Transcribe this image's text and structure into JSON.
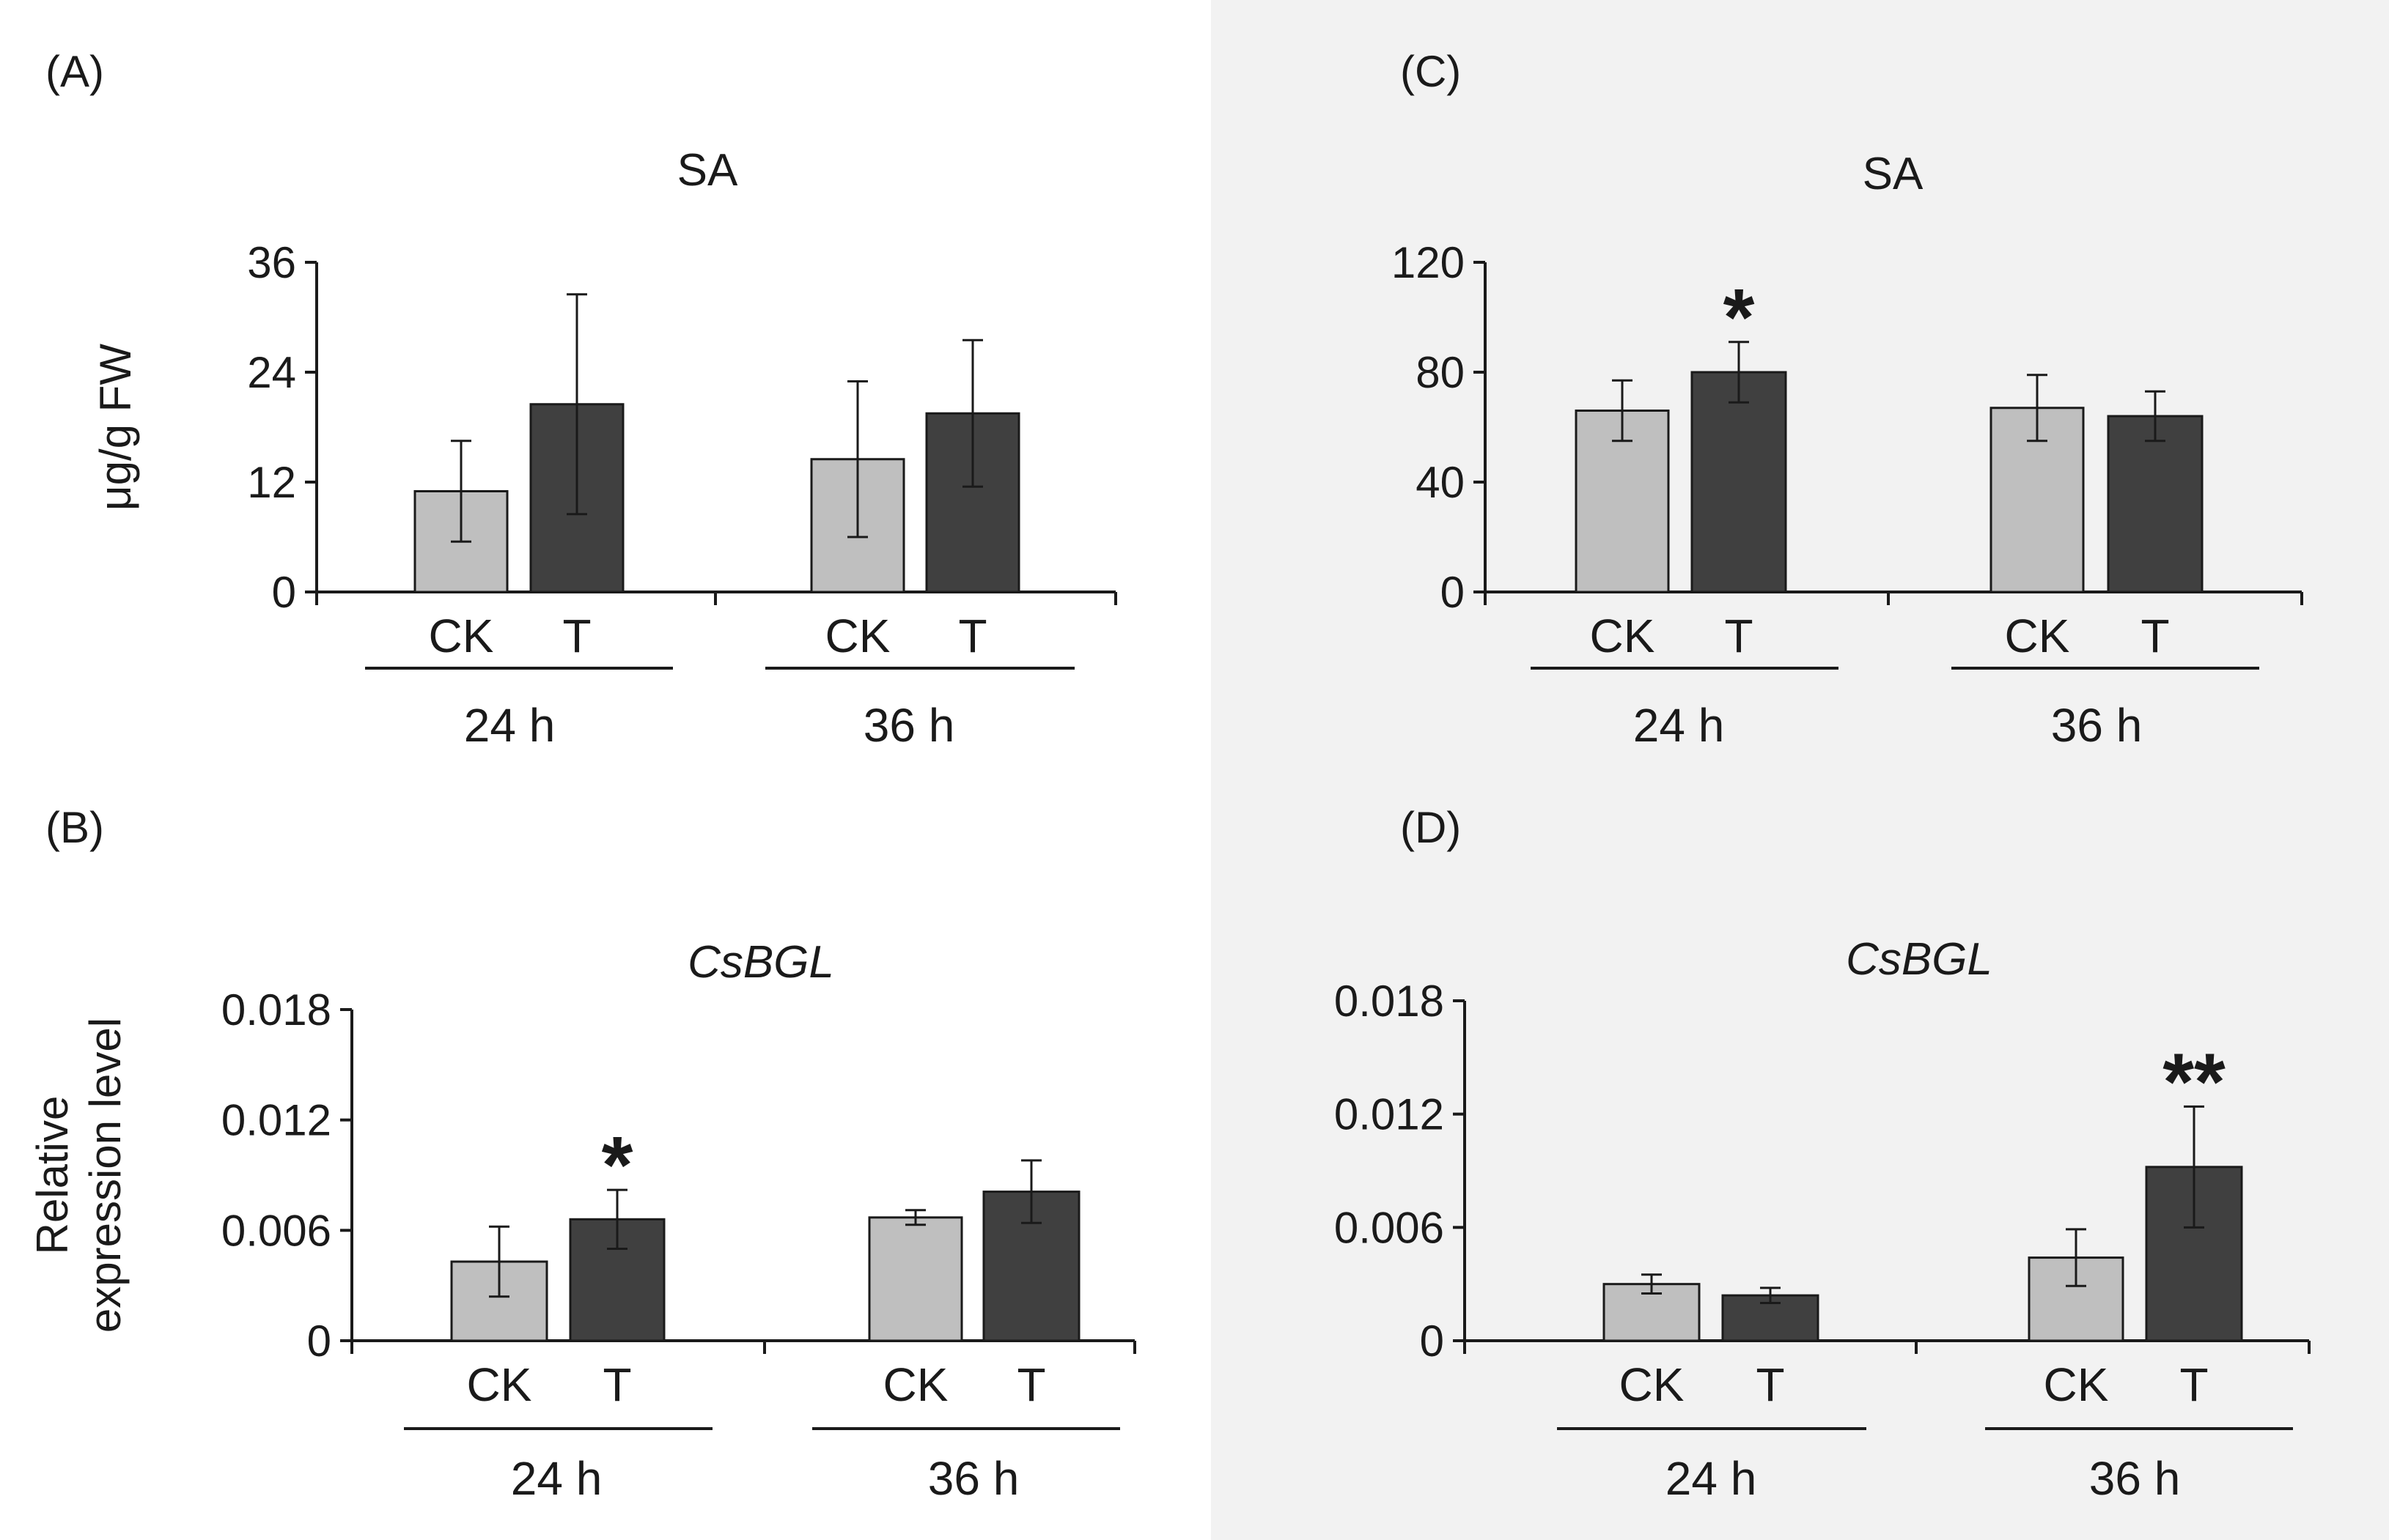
{
  "colors": {
    "ck_fill": "#bfbfbf",
    "t_fill": "#404040",
    "right_background": "#f2f2f2",
    "axis": "#1a1a1a"
  },
  "chart_data": [
    {
      "panel": "(A)",
      "type": "bar",
      "title": "SA",
      "title_italic": false,
      "ylabel": "μg/g FW",
      "ylim": [
        0,
        36
      ],
      "yticks": [
        "0",
        "12",
        "24",
        "36"
      ],
      "groups": [
        "24 h",
        "36 h"
      ],
      "categories": [
        "CK",
        "T"
      ],
      "series": [
        {
          "name": "CK",
          "values": [
            11,
            14.5
          ],
          "errors": [
            5.5,
            8.5
          ]
        },
        {
          "name": "T",
          "values": [
            20.5,
            19.5
          ],
          "errors": [
            12,
            8
          ]
        }
      ],
      "annotations": [
        {
          "group": 0,
          "series": "T",
          "text": ""
        },
        {
          "group": 1,
          "series": "T",
          "text": ""
        }
      ]
    },
    {
      "panel": "(B)",
      "type": "bar",
      "title": "CsBGL",
      "title_italic": true,
      "ylabel_lines": [
        "Relative",
        "expression level"
      ],
      "ylim": [
        0,
        0.018
      ],
      "yticks": [
        "0",
        "0.006",
        "0.012",
        "0.018"
      ],
      "groups": [
        "24 h",
        "36 h"
      ],
      "categories": [
        "CK",
        "T"
      ],
      "series": [
        {
          "name": "CK",
          "values": [
            0.0043,
            0.0067
          ],
          "errors": [
            0.0019,
            0.0004
          ]
        },
        {
          "name": "T",
          "values": [
            0.0066,
            0.0081
          ],
          "errors": [
            0.0016,
            0.0017
          ]
        }
      ],
      "annotations": [
        {
          "group": 0,
          "series": "T",
          "text": "*"
        },
        {
          "group": 1,
          "series": "T",
          "text": ""
        }
      ]
    },
    {
      "panel": "(C)",
      "type": "bar",
      "title": "SA",
      "title_italic": false,
      "ylim": [
        0,
        120
      ],
      "yticks": [
        "0",
        "40",
        "80",
        "120"
      ],
      "groups": [
        "24 h",
        "36 h"
      ],
      "categories": [
        "CK",
        "T"
      ],
      "series": [
        {
          "name": "CK",
          "values": [
            66,
            67
          ],
          "errors": [
            11,
            12
          ]
        },
        {
          "name": "T",
          "values": [
            80,
            64
          ],
          "errors": [
            11,
            9
          ]
        }
      ],
      "annotations": [
        {
          "group": 0,
          "series": "T",
          "text": "*"
        },
        {
          "group": 1,
          "series": "T",
          "text": ""
        }
      ]
    },
    {
      "panel": "(D)",
      "type": "bar",
      "title": "CsBGL",
      "title_italic": true,
      "ylim": [
        0,
        0.018
      ],
      "yticks": [
        "0",
        "0.006",
        "0.012",
        "0.018"
      ],
      "groups": [
        "24 h",
        "36 h"
      ],
      "categories": [
        "CK",
        "T"
      ],
      "series": [
        {
          "name": "CK",
          "values": [
            0.003,
            0.0044
          ],
          "errors": [
            0.0005,
            0.0015
          ]
        },
        {
          "name": "T",
          "values": [
            0.0024,
            0.0092
          ],
          "errors": [
            0.0004,
            0.0032
          ]
        }
      ],
      "annotations": [
        {
          "group": 0,
          "series": "T",
          "text": ""
        },
        {
          "group": 1,
          "series": "T",
          "text": "**"
        }
      ]
    }
  ]
}
